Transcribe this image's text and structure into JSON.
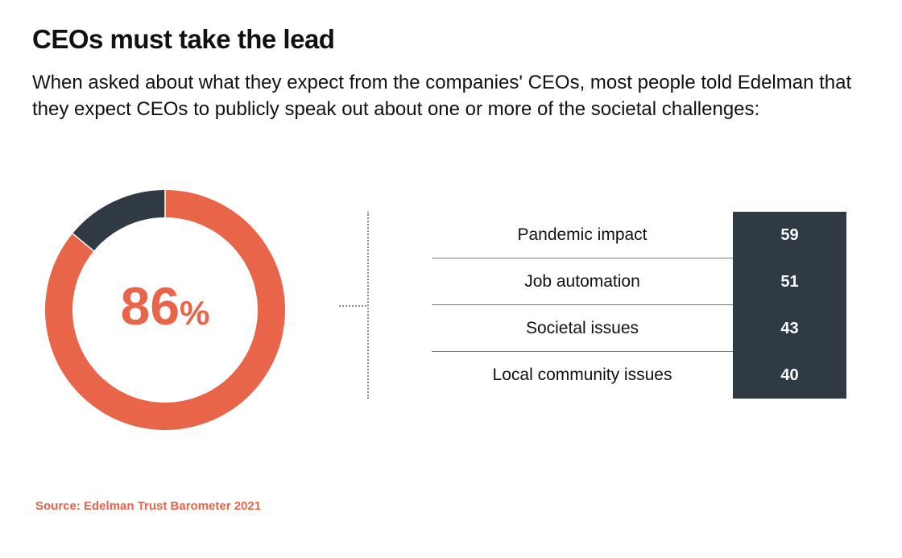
{
  "title": "CEOs must take the lead",
  "subtitle": "When asked about what they expect from the companies' CEOs, most people told Edelman that they expect CEOs to publicly speak out about one or more of the societal challenges:",
  "source": "Source: Edelman Trust Barometer 2021",
  "colors": {
    "accent": "#e8654a",
    "dark": "#2f3a44"
  },
  "chart_data": [
    {
      "type": "pie",
      "style": "donut",
      "values": [
        86,
        14
      ],
      "center_value": "86",
      "center_unit": "%",
      "colors": [
        "#e8654a",
        "#2f3a44"
      ]
    },
    {
      "type": "table",
      "rows": [
        {
          "label": "Pandemic impact",
          "value": "59"
        },
        {
          "label": "Job automation",
          "value": "51"
        },
        {
          "label": "Societal issues",
          "value": "43"
        },
        {
          "label": "Local community issues",
          "value": "40"
        }
      ]
    }
  ]
}
